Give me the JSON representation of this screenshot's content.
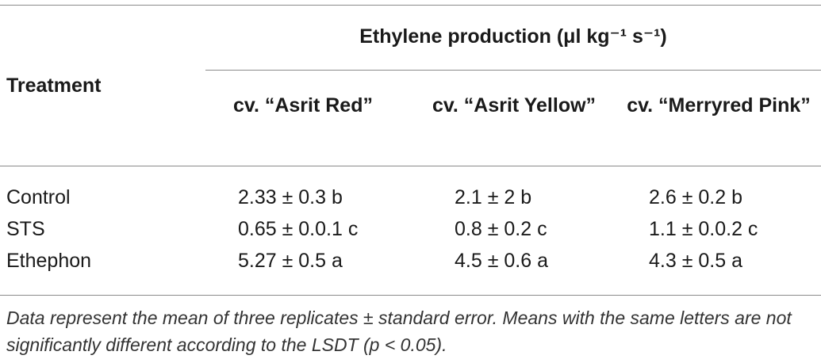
{
  "table": {
    "group_header": "Ethylene production (μl kg⁻¹ s⁻¹)",
    "row_header": "Treatment",
    "columns": [
      "cv. “Asrit Red”",
      "cv. “Asrit Yellow”",
      "cv. “Merryred Pink”"
    ],
    "rows": [
      {
        "treatment": "Control",
        "values": [
          "2.33 ± 0.3 b",
          "2.1 ± 2 b",
          "2.6 ± 0.2 b"
        ]
      },
      {
        "treatment": "STS",
        "values": [
          "0.65 ± 0.0.1 c",
          "0.8 ± 0.2 c",
          "1.1 ± 0.0.2 c"
        ]
      },
      {
        "treatment": "Ethephon",
        "values": [
          "5.27 ± 0.5 a",
          "4.5 ± 0.6 a",
          "4.3 ± 0.5 a"
        ]
      }
    ]
  },
  "footnote": "Data represent the mean of three replicates ± standard error. Means with the same letters are not significantly different according to the LSDT (p < 0.05)."
}
